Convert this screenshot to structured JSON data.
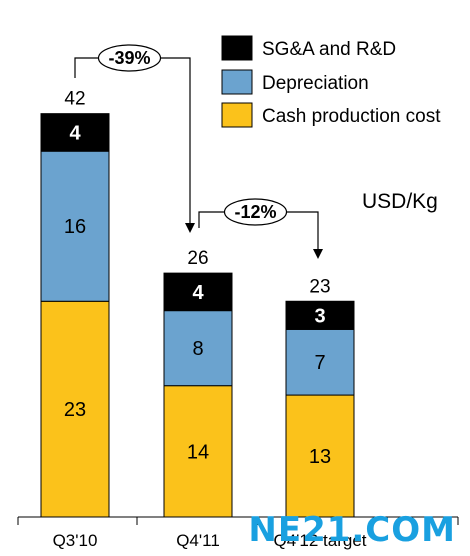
{
  "chart_data": {
    "type": "bar",
    "stacked": true,
    "categories": [
      "Q3'10",
      "Q4'11",
      "Q4'12 target"
    ],
    "series": [
      {
        "name": "Cash production cost",
        "color": "#FBC21B",
        "values": [
          23,
          14,
          13
        ]
      },
      {
        "name": "Depreciation",
        "color": "#6BA3CF",
        "values": [
          16,
          8,
          7
        ]
      },
      {
        "name": "SG&A and R&D",
        "color": "#000000",
        "values": [
          4,
          4,
          3
        ]
      }
    ],
    "totals": [
      42,
      26,
      23
    ],
    "unit_label": "USD/Kg",
    "legend_placement": "top-right",
    "annotations": [
      {
        "label": "-39%",
        "from": 0,
        "to": 1
      },
      {
        "label": "-12%",
        "from": 1,
        "to": 2
      }
    ],
    "ylim": [
      0,
      50
    ],
    "grid": false
  },
  "watermark": "NE21.COM"
}
